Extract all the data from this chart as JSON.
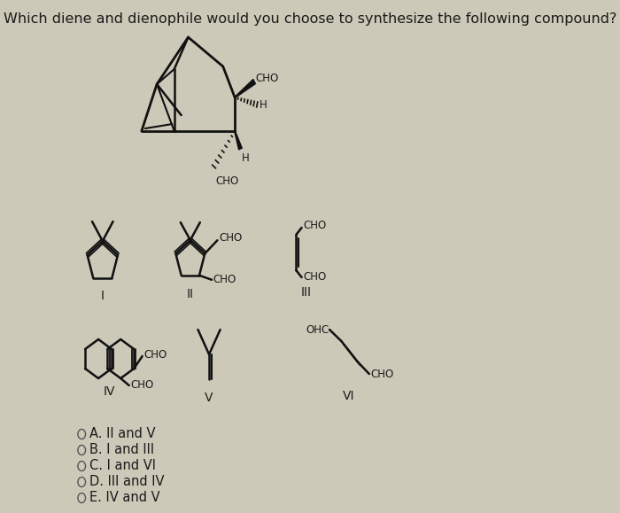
{
  "title": "Which diene and dienophile would you choose to synthesize the following compound?",
  "background_color": "#cdc9b8",
  "text_color": "#1a1a1a",
  "choices": [
    "A. II and V",
    "B. I and III",
    "C. I and VI",
    "D. III and IV",
    "E. IV and V"
  ],
  "title_fontsize": 11.5,
  "label_fontsize": 10,
  "choice_fontsize": 10.5,
  "mol_fontsize": 8.5
}
